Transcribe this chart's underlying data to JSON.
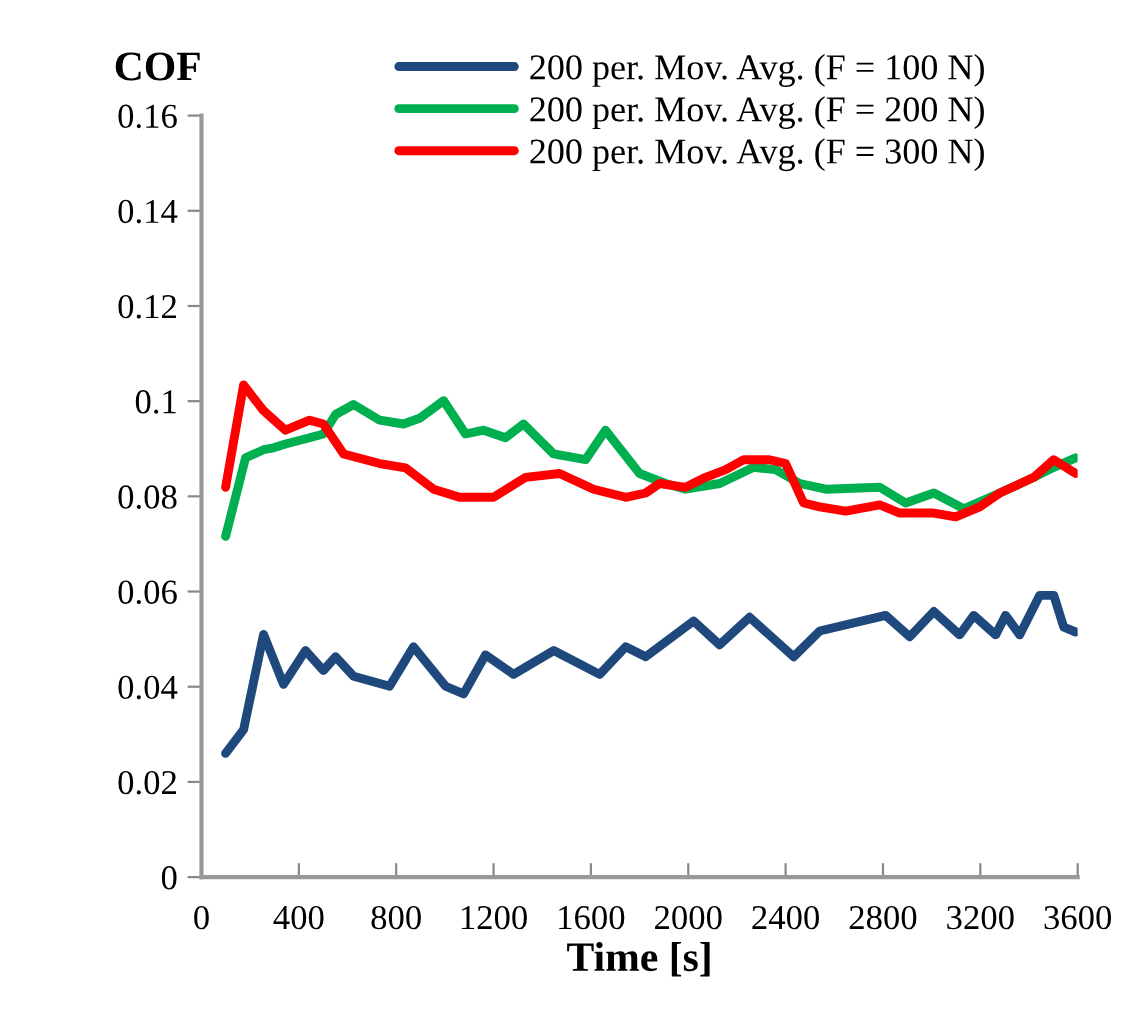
{
  "chart_data": {
    "type": "line",
    "xlabel": "Time [s]",
    "ylabel": "COF",
    "xlim": [
      0,
      3600
    ],
    "xticks": [
      0,
      400,
      800,
      1200,
      1600,
      2000,
      2400,
      2800,
      3200,
      3600
    ],
    "ylim": [
      0,
      0.16
    ],
    "yticks": [
      0,
      0.02,
      0.04,
      0.06,
      0.08,
      0.1,
      0.12,
      0.14,
      0.16
    ],
    "grid": false,
    "legend": "top",
    "marker": "none",
    "line_style": "solid",
    "series": [
      {
        "name": "200 per. Mov. Avg. (F = 100 N)",
        "color": "#1f497d",
        "x": [
          99,
          173,
          255,
          337,
          427,
          501,
          551,
          625,
          773,
          871,
          1003,
          1077,
          1167,
          1282,
          1447,
          1636,
          1743,
          1825,
          2022,
          2129,
          2252,
          2433,
          2540,
          2811,
          2910,
          3009,
          3115,
          3173,
          3263,
          3304,
          3362,
          3444,
          3502,
          3543,
          3592
        ],
        "values": [
          0.026,
          0.031,
          0.051,
          0.0405,
          0.0476,
          0.0434,
          0.0463,
          0.0422,
          0.0401,
          0.0484,
          0.0401,
          0.0385,
          0.0467,
          0.0426,
          0.0476,
          0.0426,
          0.0484,
          0.0463,
          0.0538,
          0.0488,
          0.0546,
          0.0463,
          0.0517,
          0.055,
          0.0505,
          0.0558,
          0.0509,
          0.055,
          0.0509,
          0.055,
          0.0509,
          0.0592,
          0.0592,
          0.0525,
          0.0515
        ]
      },
      {
        "name": "200 per. Mov. Avg. (F = 200 N)",
        "color": "#00b050",
        "x": [
          99,
          181,
          255,
          296,
          345,
          444,
          501,
          551,
          625,
          732,
          830,
          896,
          995,
          1085,
          1159,
          1249,
          1323,
          1447,
          1578,
          1660,
          1800,
          1907,
          1989,
          2129,
          2269,
          2359,
          2458,
          2565,
          2787,
          2893,
          3009,
          3132,
          3280,
          3420,
          3502,
          3592
        ],
        "values": [
          0.0716,
          0.0881,
          0.0898,
          0.0902,
          0.091,
          0.0923,
          0.0931,
          0.0972,
          0.0993,
          0.096,
          0.0952,
          0.0964,
          0.1001,
          0.0931,
          0.0939,
          0.0923,
          0.0952,
          0.0889,
          0.0877,
          0.0939,
          0.0848,
          0.0827,
          0.0815,
          0.0827,
          0.0861,
          0.0856,
          0.0827,
          0.0815,
          0.0819,
          0.0786,
          0.0807,
          0.0774,
          0.0807,
          0.084,
          0.0861,
          0.0881
        ]
      },
      {
        "name": "200 per. Mov. Avg. (F = 300 N)",
        "color": "#ff0000",
        "x": [
          99,
          173,
          255,
          345,
          444,
          501,
          584,
          732,
          838,
          954,
          1060,
          1200,
          1332,
          1471,
          1611,
          1743,
          1825,
          1882,
          1989,
          2071,
          2154,
          2228,
          2334,
          2400,
          2474,
          2540,
          2647,
          2787,
          2869,
          3009,
          3099,
          3198,
          3280,
          3420,
          3502,
          3592
        ],
        "values": [
          0.0819,
          0.1034,
          0.098,
          0.0939,
          0.096,
          0.0952,
          0.0889,
          0.0869,
          0.086,
          0.0815,
          0.0798,
          0.0798,
          0.084,
          0.0848,
          0.0815,
          0.0798,
          0.0807,
          0.0827,
          0.0819,
          0.084,
          0.0856,
          0.0877,
          0.0877,
          0.0869,
          0.0786,
          0.0778,
          0.0769,
          0.0782,
          0.0765,
          0.0765,
          0.0757,
          0.0778,
          0.0807,
          0.084,
          0.0877,
          0.0848
        ]
      }
    ]
  }
}
